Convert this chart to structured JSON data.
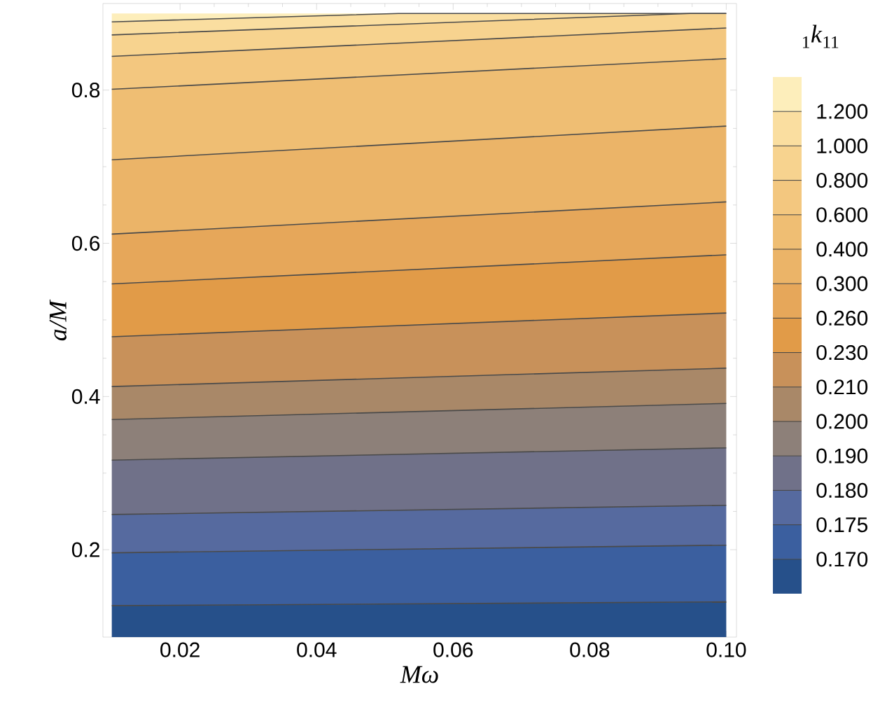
{
  "chart_data": {
    "type": "area",
    "xlabel": "*Mω*",
    "ylabel": "*a/M*",
    "clabel": "$_{1}$*k*$_{11}$",
    "xlim": [
      0.0087,
      0.1015
    ],
    "ylim": [
      0.086,
      0.913
    ],
    "xticks": [
      0.02,
      0.04,
      0.06,
      0.08,
      {
        "value": 0.1,
        "label": "0.10"
      }
    ],
    "yticks": [
      0.2,
      0.4,
      0.6,
      0.8
    ],
    "legend": "right",
    "series": [
      {
        "name": "0.170",
        "color": "#26508a",
        "x": [
          0.01,
          0.1
        ],
        "values": [
          0.127,
          0.132
        ]
      },
      {
        "name": "0.175",
        "color": "#3b5f9f",
        "x": [
          0.01,
          0.1
        ],
        "values": [
          0.196,
          0.206
        ]
      },
      {
        "name": "0.180",
        "color": "#566a9f",
        "x": [
          0.01,
          0.1
        ],
        "values": [
          0.246,
          0.258
        ]
      },
      {
        "name": "0.190",
        "color": "#707189",
        "x": [
          0.01,
          0.1
        ],
        "values": [
          0.317,
          0.333
        ]
      },
      {
        "name": "0.200",
        "color": "#8d8079",
        "x": [
          0.01,
          0.1
        ],
        "values": [
          0.37,
          0.391
        ]
      },
      {
        "name": "0.210",
        "color": "#a98868",
        "x": [
          0.01,
          0.1
        ],
        "values": [
          0.413,
          0.437
        ]
      },
      {
        "name": "0.230",
        "color": "#c8915a",
        "x": [
          0.01,
          0.1
        ],
        "values": [
          0.478,
          0.509
        ]
      },
      {
        "name": "0.260",
        "color": "#e19b48",
        "x": [
          0.01,
          0.1
        ],
        "values": [
          0.547,
          0.585
        ]
      },
      {
        "name": "0.300",
        "color": "#e6a75a",
        "x": [
          0.01,
          0.1
        ],
        "values": [
          0.612,
          0.654
        ]
      },
      {
        "name": "0.400",
        "color": "#ebb468",
        "x": [
          0.01,
          0.1
        ],
        "values": [
          0.709,
          0.753
        ]
      },
      {
        "name": "0.600",
        "color": "#efbe73",
        "x": [
          0.01,
          0.1
        ],
        "values": [
          0.801,
          0.841
        ]
      },
      {
        "name": "0.800",
        "color": "#f3c77f",
        "x": [
          0.01,
          0.1
        ],
        "values": [
          0.844,
          0.881
        ]
      },
      {
        "name": "1.000",
        "color": "#f7d38f",
        "x": [
          0.01,
          0.0947,
          0.1
        ],
        "values": [
          0.872,
          0.9,
          0.9
        ]
      },
      {
        "name": "1.200",
        "color": "#fadea0",
        "x": [
          0.01,
          0.052,
          0.1
        ],
        "values": [
          0.889,
          0.9,
          0.9
        ]
      },
      {
        "color": "#fdeebb",
        "x": [
          0.01,
          0.1
        ],
        "values": [
          0.9,
          0.9
        ]
      }
    ]
  }
}
